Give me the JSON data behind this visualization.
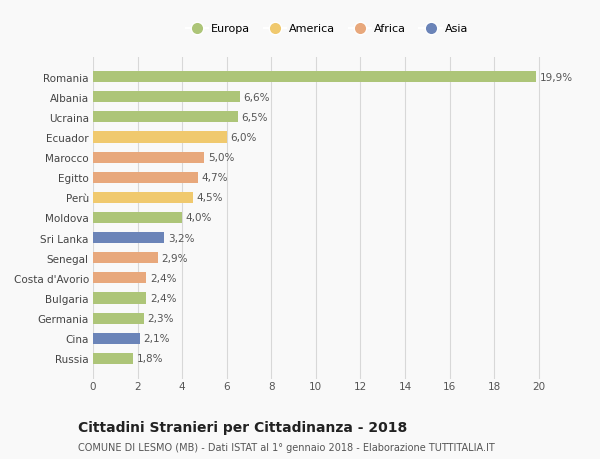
{
  "categories": [
    "Russia",
    "Cina",
    "Germania",
    "Bulgaria",
    "Costa d'Avorio",
    "Senegal",
    "Sri Lanka",
    "Moldova",
    "Perù",
    "Egitto",
    "Marocco",
    "Ecuador",
    "Ucraina",
    "Albania",
    "Romania"
  ],
  "values": [
    1.8,
    2.1,
    2.3,
    2.4,
    2.4,
    2.9,
    3.2,
    4.0,
    4.5,
    4.7,
    5.0,
    6.0,
    6.5,
    6.6,
    19.9
  ],
  "labels": [
    "1,8%",
    "2,1%",
    "2,3%",
    "2,4%",
    "2,4%",
    "2,9%",
    "3,2%",
    "4,0%",
    "4,5%",
    "4,7%",
    "5,0%",
    "6,0%",
    "6,5%",
    "6,6%",
    "19,9%"
  ],
  "colors": [
    "#adc578",
    "#6b84b8",
    "#adc578",
    "#adc578",
    "#e8a87c",
    "#e8a87c",
    "#6b84b8",
    "#adc578",
    "#f0c96e",
    "#e8a87c",
    "#e8a87c",
    "#f0c96e",
    "#adc578",
    "#adc578",
    "#adc578"
  ],
  "continent_colors": {
    "Europa": "#adc578",
    "America": "#f0c96e",
    "Africa": "#e8a87c",
    "Asia": "#6b84b8"
  },
  "xlim": [
    0,
    21
  ],
  "xticks": [
    0,
    2,
    4,
    6,
    8,
    10,
    12,
    14,
    16,
    18,
    20
  ],
  "title": "Cittadini Stranieri per Cittadinanza - 2018",
  "subtitle": "COMUNE DI LESMO (MB) - Dati ISTAT al 1° gennaio 2018 - Elaborazione TUTTITALIA.IT",
  "background_color": "#f9f9f9",
  "bar_height": 0.55,
  "grid_color": "#d8d8d8",
  "label_fontsize": 7.5,
  "tick_fontsize": 7.5,
  "title_fontsize": 10,
  "subtitle_fontsize": 7
}
